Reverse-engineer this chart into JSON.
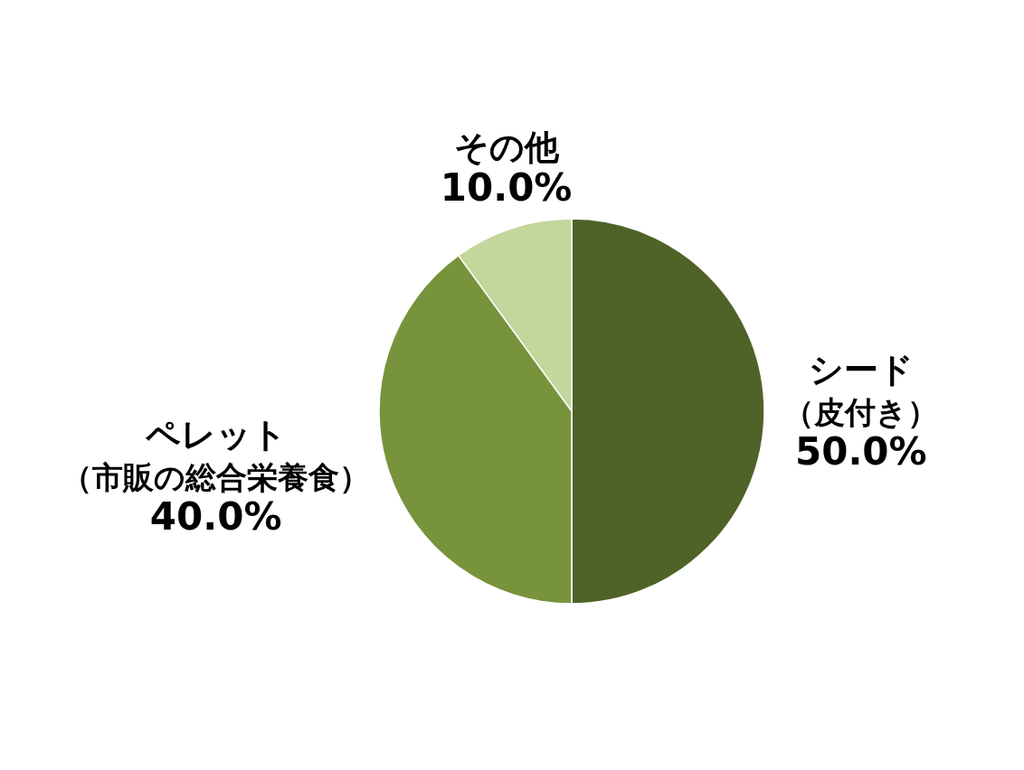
{
  "chart_data": {
    "type": "pie",
    "categories": [
      "シード（皮付き）",
      "ペレット（市販の総合栄養食）",
      "その他"
    ],
    "values": [
      50,
      40,
      10
    ],
    "colors": [
      "#4f6228",
      "#77933c",
      "#c3d69b"
    ],
    "value_labels": [
      "50.0%",
      "40.0%",
      "10.0%"
    ]
  }
}
